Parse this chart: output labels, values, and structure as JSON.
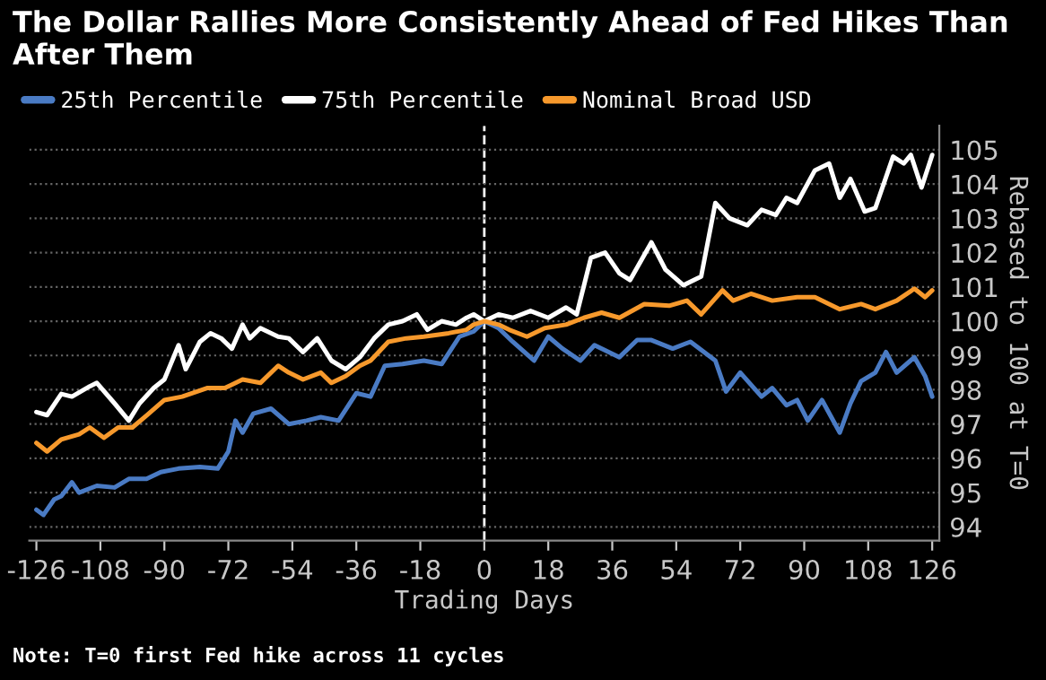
{
  "chart_data": {
    "type": "line",
    "title": "The Dollar Rallies More Consistently Ahead of Fed Hikes Than After Them",
    "xlabel": "Trading Days",
    "ylabel": "Rebased to 100 at T=0",
    "annotations": [
      "Note: T=0 first Fed hike across 11 cycles"
    ],
    "series": [
      {
        "name": "25th Percentile",
        "color": "#4a7bc4",
        "x": [
          -126,
          -124,
          -121,
          -119,
          -116,
          -114,
          -109,
          -104,
          -100,
          -95,
          -91,
          -86,
          -80,
          -75,
          -72,
          -70,
          -68,
          -65,
          -60,
          -55,
          -50,
          -46,
          -41,
          -36,
          -32,
          -28,
          -23,
          -17,
          -12,
          -7,
          -3,
          0,
          4,
          8,
          14,
          18,
          22,
          27,
          31,
          38,
          43,
          47,
          53,
          58,
          65,
          68,
          72,
          78,
          81,
          85,
          88,
          91,
          95,
          100,
          103,
          106,
          110,
          113,
          116,
          121,
          124,
          126
        ],
        "values": [
          94.5,
          94.35,
          94.8,
          94.9,
          95.3,
          95.0,
          95.2,
          95.15,
          95.4,
          95.4,
          95.6,
          95.7,
          95.75,
          95.7,
          96.2,
          97.1,
          96.75,
          97.3,
          97.45,
          97.0,
          97.1,
          97.2,
          97.1,
          97.9,
          97.8,
          98.7,
          98.75,
          98.85,
          98.75,
          99.55,
          99.7,
          100,
          99.8,
          99.4,
          98.85,
          99.55,
          99.2,
          98.85,
          99.3,
          98.95,
          99.45,
          99.45,
          99.2,
          99.4,
          98.85,
          97.95,
          98.5,
          97.8,
          98.05,
          97.55,
          97.7,
          97.1,
          97.7,
          96.75,
          97.6,
          98.25,
          98.5,
          99.1,
          98.5,
          98.95,
          98.4,
          97.8
        ]
      },
      {
        "name": "75th Percentile",
        "color": "#ffffff",
        "x": [
          -126,
          -123,
          -119,
          -116,
          -111,
          -109,
          -104,
          -100,
          -97,
          -93,
          -90,
          -86,
          -84,
          -80,
          -77,
          -74,
          -71,
          -68,
          -66,
          -63,
          -58,
          -55,
          -51,
          -47,
          -43,
          -39,
          -35,
          -31,
          -27,
          -23,
          -19,
          -16,
          -12,
          -8,
          -5,
          -3,
          0,
          4,
          8,
          13,
          18,
          23,
          26,
          30,
          34,
          38,
          41,
          47,
          51,
          56,
          61,
          65,
          69,
          74,
          78,
          82,
          85,
          88,
          93,
          97,
          100,
          103,
          107,
          110,
          115,
          118,
          120,
          123,
          126
        ],
        "values": [
          97.35,
          97.26,
          97.88,
          97.8,
          98.1,
          98.2,
          97.6,
          97.1,
          97.6,
          98.05,
          98.3,
          99.3,
          98.6,
          99.4,
          99.65,
          99.5,
          99.2,
          99.9,
          99.5,
          99.8,
          99.55,
          99.5,
          99.1,
          99.5,
          98.85,
          98.6,
          98.95,
          99.5,
          99.9,
          100.0,
          100.2,
          99.75,
          100.0,
          99.9,
          100.1,
          100.2,
          100,
          100.2,
          100.1,
          100.3,
          100.1,
          100.4,
          100.2,
          101.85,
          102.0,
          101.4,
          101.2,
          102.3,
          101.5,
          101.05,
          101.3,
          103.45,
          103.0,
          102.8,
          103.25,
          103.1,
          103.6,
          103.45,
          104.4,
          104.6,
          103.6,
          104.15,
          103.2,
          103.3,
          104.8,
          104.6,
          104.85,
          103.9,
          104.85
        ]
      },
      {
        "name": "Nominal Broad USD",
        "color": "#f7992c",
        "x": [
          -126,
          -123,
          -119,
          -114,
          -111,
          -107,
          -103,
          -99,
          -95,
          -90,
          -85,
          -78,
          -73,
          -68,
          -63,
          -58,
          -55,
          -51,
          -46,
          -43,
          -39,
          -35,
          -32,
          -27,
          -22,
          -17,
          -10,
          -5,
          -3,
          0,
          4,
          7,
          12,
          17,
          23,
          28,
          33,
          38,
          45,
          52,
          57,
          61,
          67,
          70,
          75,
          81,
          88,
          93,
          100,
          106,
          110,
          116,
          121,
          124,
          126
        ],
        "values": [
          96.45,
          96.2,
          96.55,
          96.7,
          96.9,
          96.6,
          96.9,
          96.9,
          97.25,
          97.7,
          97.8,
          98.05,
          98.05,
          98.3,
          98.2,
          98.7,
          98.5,
          98.3,
          98.5,
          98.2,
          98.4,
          98.7,
          98.85,
          99.4,
          99.5,
          99.55,
          99.65,
          99.75,
          99.9,
          100,
          99.9,
          99.75,
          99.55,
          99.8,
          99.9,
          100.1,
          100.25,
          100.1,
          100.5,
          100.45,
          100.6,
          100.2,
          100.9,
          100.6,
          100.8,
          100.6,
          100.7,
          100.7,
          100.35,
          100.5,
          100.35,
          100.6,
          100.95,
          100.7,
          100.9
        ]
      }
    ],
    "xlim": [
      -128,
      128
    ],
    "xticks": [
      -126,
      -108,
      -90,
      -72,
      -54,
      -36,
      -18,
      0,
      18,
      36,
      54,
      72,
      90,
      108,
      126
    ],
    "ylim": [
      93.6,
      105.7
    ],
    "yticks": [
      94,
      95,
      96,
      97,
      98,
      99,
      100,
      101,
      102,
      103,
      104,
      105
    ],
    "ref_lines": [
      {
        "axis": "x",
        "value": 0,
        "color": "#ffffff",
        "line_style": "dashed"
      }
    ],
    "grid": "y",
    "legend": "top left",
    "line_style": "solid",
    "marker": "none"
  }
}
